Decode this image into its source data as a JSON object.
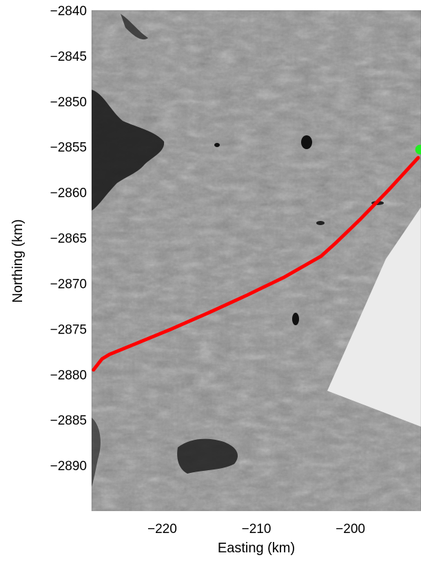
{
  "chart_data": {
    "type": "line",
    "title": "",
    "xlabel": "Easting (km)",
    "ylabel": "Northing (km)",
    "xlim": [
      -227.5,
      -192.5
    ],
    "ylim": [
      -2895,
      -2840
    ],
    "xticks": [
      -220,
      -210,
      -200
    ],
    "yticks": [
      -2840,
      -2845,
      -2850,
      -2855,
      -2860,
      -2865,
      -2870,
      -2875,
      -2880,
      -2885,
      -2890
    ],
    "xtick_labels": [
      "−220",
      "−210",
      "−200"
    ],
    "ytick_labels": [
      "−2840",
      "−2845",
      "−2850",
      "−2855",
      "−2860",
      "−2865",
      "−2870",
      "−2875",
      "−2880",
      "−2885",
      "−2890"
    ],
    "grid": false,
    "background": "satellite radar imagery (grayscale)",
    "series": [
      {
        "color": "#ff0000",
        "x": [
          -227.3,
          -226.4,
          -225.6,
          -223.0,
          -219.0,
          -215.0,
          -211.0,
          -207.0,
          -203.1,
          -201.5,
          -199.0,
          -196.0,
          -192.8
        ],
        "y": [
          -2879.5,
          -2878.3,
          -2877.8,
          -2876.7,
          -2875.0,
          -2873.2,
          -2871.3,
          -2869.3,
          -2867.0,
          -2865.5,
          -2863.0,
          -2859.8,
          -2856.2
        ]
      }
    ],
    "markers": [
      {
        "x": -192.6,
        "y": -2855.3,
        "color": "#22ee22"
      }
    ]
  }
}
